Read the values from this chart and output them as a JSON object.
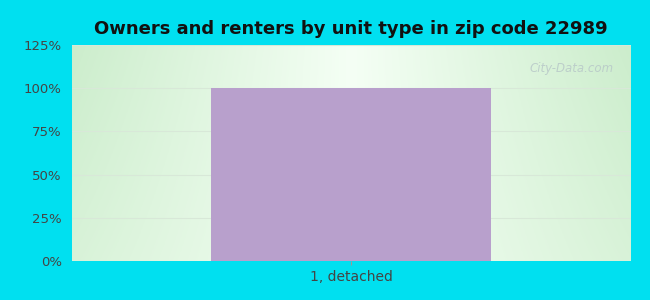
{
  "title": "Owners and renters by unit type in zip code 22989",
  "categories": [
    "1, detached"
  ],
  "values": [
    100
  ],
  "bar_color": "#b8a0cc",
  "bar_width": 0.5,
  "ylim": [
    0,
    125
  ],
  "yticks": [
    0,
    25,
    50,
    75,
    100,
    125
  ],
  "ytick_labels": [
    "0%",
    "25%",
    "50%",
    "75%",
    "100%",
    "125%"
  ],
  "title_fontsize": 13,
  "tick_fontsize": 9.5,
  "xlabel_fontsize": 10,
  "outer_bg_color": "#00e0f0",
  "grid_color": "#e0e8e0",
  "watermark": "City-Data.com"
}
